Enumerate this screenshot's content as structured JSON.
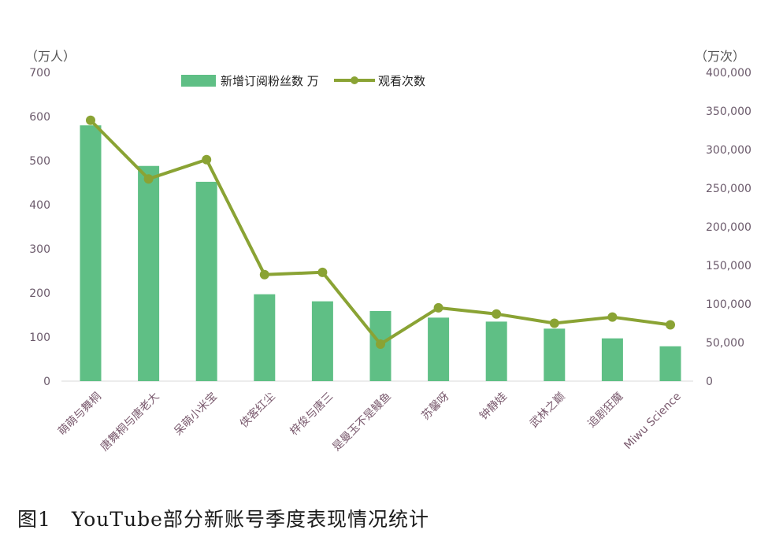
{
  "caption": "图1　YouTube部分新账号季度表现情况统计",
  "chart_data": {
    "type": "bar+line",
    "title": "",
    "categories": [
      "萌萌与舞桐",
      "唐舞桐与唐老大",
      "呆萌小米宝",
      "侠客红尘",
      "梓俊与唐三",
      "是曼玉不是鳗鱼",
      "苏馨呀",
      "钟静娃",
      "武林之巅",
      "追剧狂魔",
      "Miwu Science"
    ],
    "y_left": {
      "unit_label": "（万人）",
      "range": [
        0,
        700
      ],
      "ticks": [
        "0",
        "100",
        "200",
        "300",
        "400",
        "500",
        "600",
        "700"
      ]
    },
    "y_right": {
      "unit_label": "（万次）",
      "range": [
        0,
        400000
      ],
      "ticks": [
        "0",
        "50,000",
        "100,000",
        "150,000",
        "200,000",
        "250,000",
        "300,000",
        "350,000",
        "400,000"
      ]
    },
    "series": [
      {
        "name": "新增订阅粉丝数 万",
        "type": "bar",
        "axis": "left",
        "color": "#5fbf85",
        "values": [
          580,
          488,
          452,
          197,
          181,
          159,
          144,
          135,
          119,
          97,
          79
        ]
      },
      {
        "name": "观看次数",
        "type": "line",
        "axis": "right",
        "color": "#8aa334",
        "values": [
          338000,
          262000,
          287000,
          138000,
          141000,
          48000,
          95000,
          87000,
          75000,
          83000,
          73000
        ]
      }
    ],
    "legend": "top-center",
    "grid": false
  }
}
